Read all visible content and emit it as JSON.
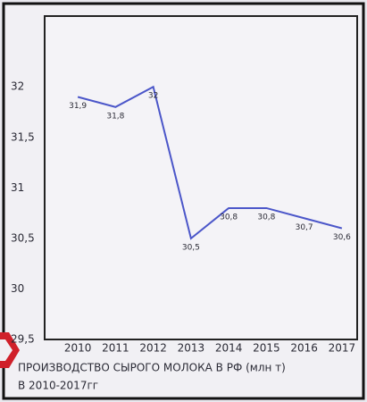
{
  "chart_data": {
    "type": "line",
    "title": "ПРОИЗВОДСТВО СЫРОГО МОЛОКА В РФ (млн т)",
    "subtitle": "В 2010-2017гг",
    "categories": [
      "2010",
      "2011",
      "2012",
      "2013",
      "2014",
      "2015",
      "2016",
      "2017"
    ],
    "values": [
      31.9,
      31.8,
      32,
      30.5,
      30.8,
      30.8,
      30.7,
      30.6
    ],
    "value_labels": [
      "31,9",
      "31,8",
      "32",
      "30,5",
      "30,8",
      "30,8",
      "30,7",
      "30,6"
    ],
    "color": "#4b56c9",
    "ylim": [
      29.5,
      32.7
    ],
    "yticks": [
      {
        "value": 29.5,
        "label": "29,5"
      },
      {
        "value": 30,
        "label": "30"
      },
      {
        "value": 30.5,
        "label": "30,5"
      },
      {
        "value": 31,
        "label": "31"
      },
      {
        "value": 31.5,
        "label": "31,5"
      },
      {
        "value": 32,
        "label": "32"
      }
    ]
  }
}
